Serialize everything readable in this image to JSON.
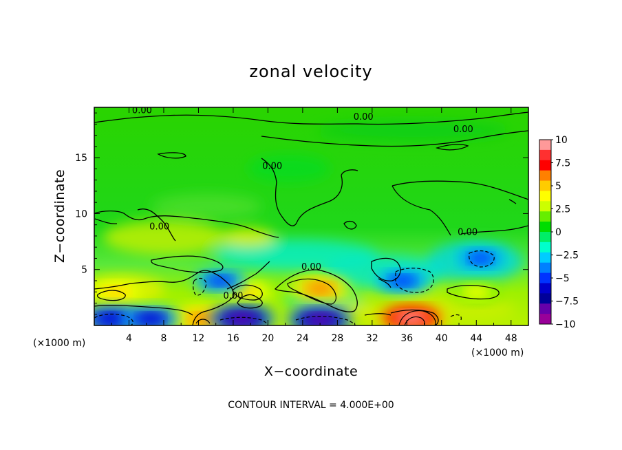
{
  "chart_data": {
    "type": "heatmap",
    "title": "zonal velocity",
    "xlabel": "X−coordinate",
    "ylabel": "Z−coordinate",
    "x_unit_label": "(×1000 m)",
    "x_unit_label_right": "(×1000 m)",
    "xlim": [
      0,
      50
    ],
    "ylim": [
      0,
      19.5
    ],
    "x_ticks": [
      4,
      8,
      12,
      16,
      20,
      24,
      28,
      32,
      36,
      40,
      44,
      48
    ],
    "y_ticks": [
      5,
      10,
      15
    ],
    "colorbar": {
      "range": [
        -10,
        10
      ],
      "tick_labels": [
        "10",
        "7.5",
        "5",
        "2.5",
        "0",
        "−2.5",
        "−5",
        "−7.5",
        "−10"
      ],
      "tick_values": [
        10,
        7.5,
        5,
        2.5,
        0,
        -2.5,
        -5,
        -7.5,
        -10
      ],
      "colors_top_to_bottom": [
        "#ff9999",
        "#ff3030",
        "#ff0000",
        "#ff8000",
        "#ffcc00",
        "#ffff00",
        "#ccff00",
        "#66ee00",
        "#00dd00",
        "#00ee66",
        "#00ffcc",
        "#00ccff",
        "#0080ff",
        "#0033ff",
        "#0000cc",
        "#000099",
        "#6600aa",
        "#990099"
      ]
    },
    "features": [
      {
        "x": 36.5,
        "z": 0.7,
        "value": 9.5
      },
      {
        "x": 26.0,
        "z": 3.3,
        "value": 6.5
      },
      {
        "x": 17.5,
        "z": 3.0,
        "value": 5.0
      },
      {
        "x": 2.5,
        "z": 3.0,
        "value": 5.5
      },
      {
        "x": 44.0,
        "z": 3.0,
        "value": 3.5
      },
      {
        "x": 12.5,
        "z": 0.6,
        "value": 6.5
      },
      {
        "x": 35.5,
        "z": 4.0,
        "value": -5.5
      },
      {
        "x": 44.5,
        "z": 6.0,
        "value": -4.5
      },
      {
        "x": 2.0,
        "z": 0.6,
        "value": -6.5
      },
      {
        "x": 6.5,
        "z": 0.6,
        "value": -6.0
      },
      {
        "x": 17.0,
        "z": 0.6,
        "value": -8.0
      },
      {
        "x": 26.0,
        "z": 0.5,
        "value": -8.0
      },
      {
        "x": 14.5,
        "z": 4.0,
        "value": -5.0
      }
    ],
    "contour_labels": [
      {
        "text": "0.00",
        "x": 5.5,
        "z": 19.2
      },
      {
        "text": "0.00",
        "x": 31.0,
        "z": 18.6
      },
      {
        "text": "0.00",
        "x": 42.5,
        "z": 17.5
      },
      {
        "text": "0.00",
        "x": 20.5,
        "z": 14.2
      },
      {
        "text": "0.00",
        "x": 7.5,
        "z": 8.8
      },
      {
        "text": "0.00",
        "x": 43.0,
        "z": 8.3
      },
      {
        "text": "0.00",
        "x": 25.0,
        "z": 5.2
      },
      {
        "text": "0.00",
        "x": 16.0,
        "z": 2.6
      }
    ],
    "contour_interval_text": "CONTOUR INTERVAL = 4.000E+00"
  }
}
